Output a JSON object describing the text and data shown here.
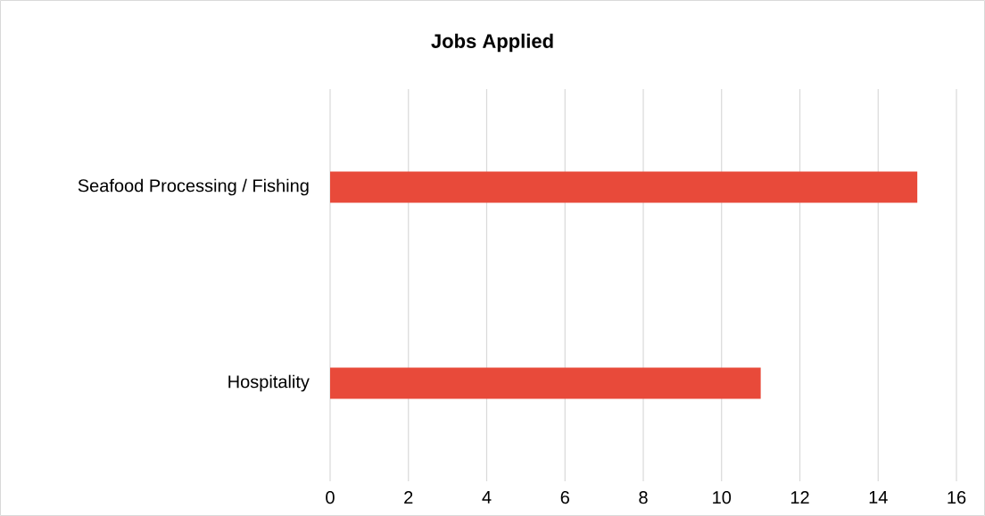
{
  "chart_data": {
    "type": "bar",
    "title": "Jobs Applied",
    "orientation": "horizontal",
    "categories": [
      "Seafood Processing / Fishing",
      "Hospitality"
    ],
    "values": [
      15,
      11
    ],
    "color": "#e84a3a",
    "xlim": [
      0,
      16
    ],
    "xticks": [
      0,
      2,
      4,
      6,
      8,
      10,
      12,
      14,
      16
    ],
    "grid": "x"
  }
}
